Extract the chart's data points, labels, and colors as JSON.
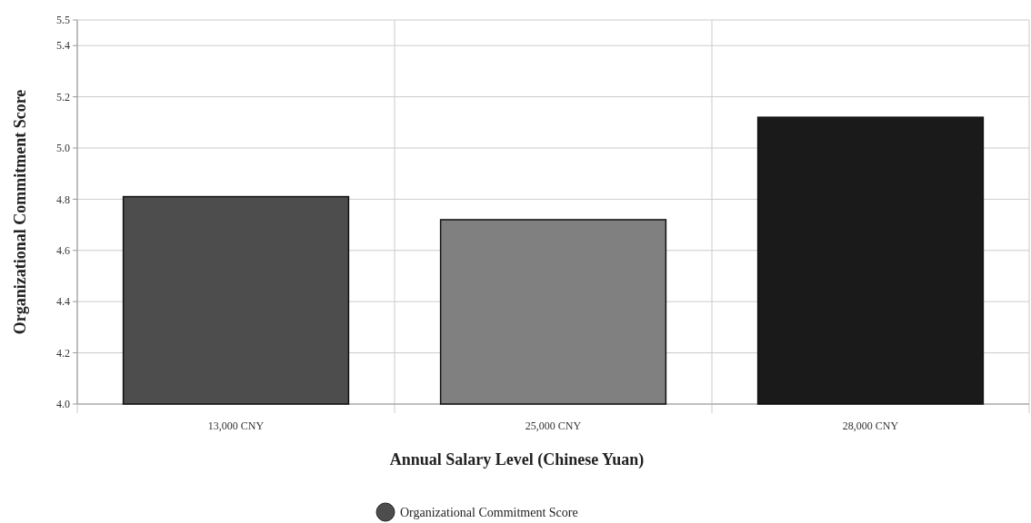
{
  "chart_data": {
    "type": "bar",
    "xlabel": "Annual Salary Level (Chinese Yuan)",
    "ylabel": "Organizational Commitment Score",
    "categories": [
      "13,000 CNY",
      "25,000 CNY",
      "28,000 CNY"
    ],
    "series": [
      {
        "name": "Organizational Commitment Score",
        "color": "#4d4d4d",
        "colors": [
          "#4d4d4d",
          "#808080",
          "#1a1a1a"
        ],
        "values": [
          4.81,
          4.72,
          5.12
        ]
      }
    ],
    "ylim": [
      4.0,
      5.5
    ],
    "yticks": [
      {
        "value": 4.0,
        "label": "4.0"
      },
      4.2,
      4.4,
      4.6,
      4.8,
      {
        "value": 5.0,
        "label": "5.0"
      },
      5.2,
      5.4,
      5.5
    ],
    "grid": true,
    "legend": "bottom"
  }
}
